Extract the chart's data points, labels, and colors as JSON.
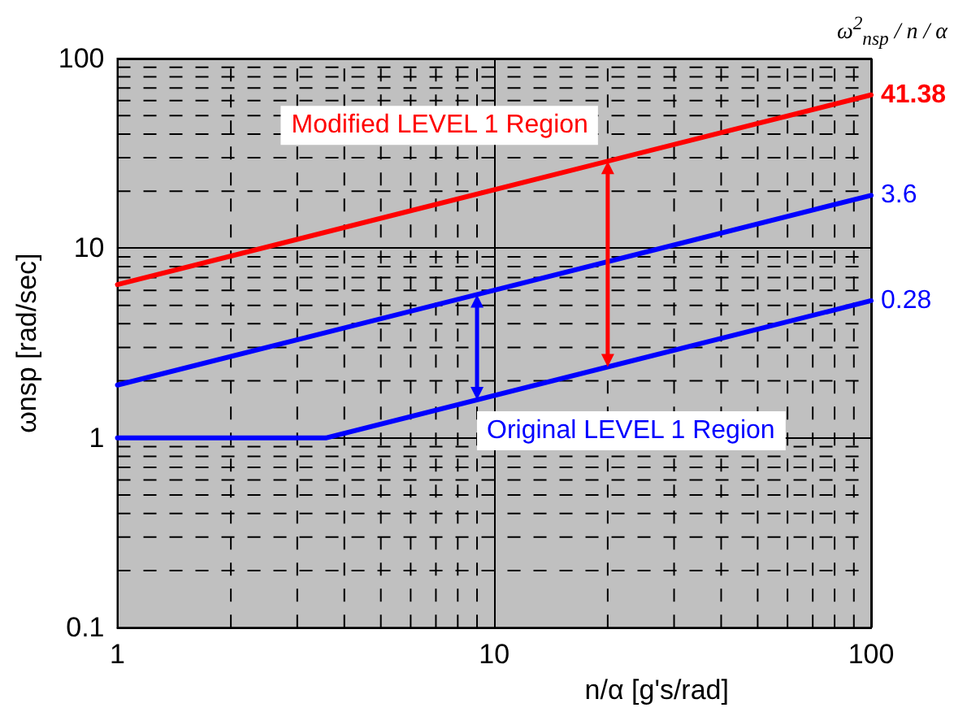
{
  "chart_data": {
    "type": "line",
    "xlabel": "n/α [g's/rad]",
    "ylabel": "ωnsp [rad/sec]",
    "legend_title": "ω$^{2}$$_{nsp}$ / n / α",
    "series": [
      {
        "name": "41.38",
        "color": "#ff0000",
        "x": [
          1,
          100
        ],
        "values": [
          6.43,
          64.3
        ]
      },
      {
        "name": "3.6",
        "color": "#0000ff",
        "x": [
          1,
          100
        ],
        "values": [
          1.9,
          19
        ]
      },
      {
        "name": "0.28",
        "color": "#0000ff",
        "x": [
          1,
          3.57,
          100
        ],
        "values": [
          1,
          1,
          5.29
        ]
      }
    ],
    "annotations": [
      {
        "text": "Modified LEVEL 1 Region",
        "x": 20,
        "y": 28.8
      },
      {
        "text": "Original LEVEL 1 Region",
        "x": 9,
        "y": 5.7
      }
    ],
    "log": "xy",
    "xlim": [
      1,
      100
    ],
    "ylim": [
      0.1,
      100
    ],
    "xticks": [
      1,
      10,
      100
    ],
    "yticks": [
      0.1,
      1,
      10,
      100
    ],
    "grid": true,
    "legend": false,
    "marker": "none",
    "line_style": "solid"
  }
}
